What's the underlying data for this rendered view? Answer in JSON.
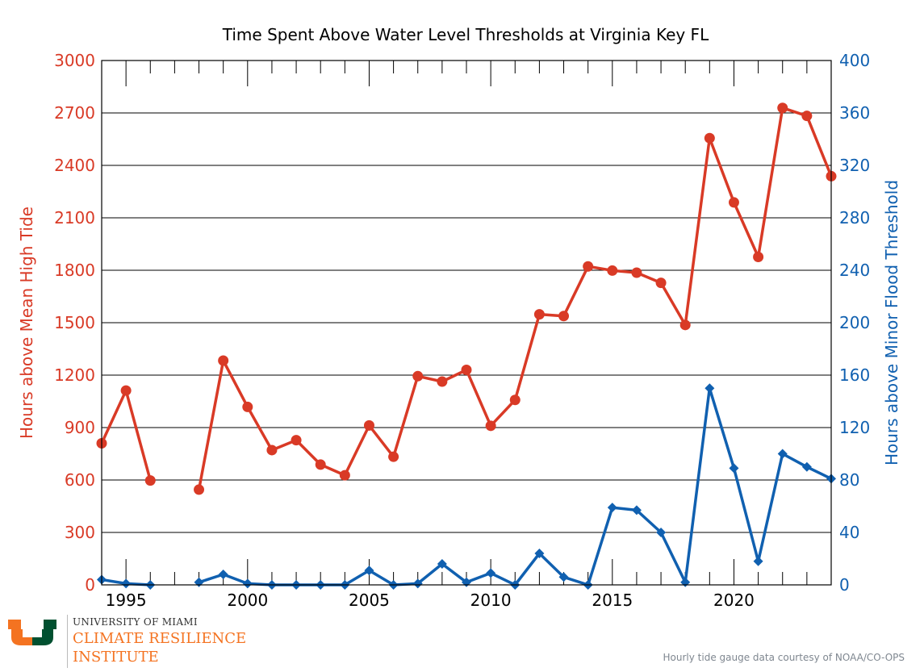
{
  "credit": "Hourly tide gauge data courtesy of NOAA/CO-OPS",
  "logo": {
    "university": "UNIVERSITY OF MIAMI",
    "line1": "CLIMATE RESILIENCE",
    "line2": "INSTITUTE",
    "colors": {
      "orange": "#f47321",
      "green": "#005030"
    }
  },
  "chart_data": {
    "type": "line",
    "title": "Time Spent Above Water Level Thresholds at Virginia Key FL",
    "xlabel": "",
    "ylabel": "Hours above Mean High Tide",
    "y2label": "Hours above Minor Flood Threshold",
    "xlim": [
      1994,
      2024
    ],
    "ylim": [
      0,
      3000
    ],
    "y2lim": [
      0,
      400
    ],
    "xticks": [
      1995,
      2000,
      2005,
      2010,
      2015,
      2020
    ],
    "yticks": [
      0,
      300,
      600,
      900,
      1200,
      1500,
      1800,
      2100,
      2400,
      2700,
      3000
    ],
    "y2ticks": [
      0,
      40,
      80,
      120,
      160,
      200,
      240,
      280,
      320,
      360,
      400
    ],
    "grid": "horizontal",
    "series": [
      {
        "name": "",
        "axis": "left",
        "color": "#d93a26",
        "marker": "circle",
        "points": [
          [
            1994,
            810
          ],
          [
            1995,
            1112
          ],
          [
            1996,
            597
          ],
          [
            1998,
            545
          ],
          [
            1999,
            1283
          ],
          [
            2000,
            1018
          ],
          [
            2001,
            771
          ],
          [
            2002,
            828
          ],
          [
            2003,
            688
          ],
          [
            2004,
            627
          ],
          [
            2005,
            912
          ],
          [
            2006,
            733
          ],
          [
            2007,
            1194
          ],
          [
            2008,
            1163
          ],
          [
            2009,
            1230
          ],
          [
            2010,
            910
          ],
          [
            2011,
            1058
          ],
          [
            2012,
            1548
          ],
          [
            2013,
            1538
          ],
          [
            2014,
            1822
          ],
          [
            2015,
            1798
          ],
          [
            2016,
            1786
          ],
          [
            2017,
            1728
          ],
          [
            2018,
            1487
          ],
          [
            2019,
            2556
          ],
          [
            2020,
            2188
          ],
          [
            2021,
            1876
          ],
          [
            2022,
            2729
          ],
          [
            2023,
            2683
          ],
          [
            2024,
            2338
          ]
        ],
        "gaps_after": [
          1996
        ]
      },
      {
        "name": "",
        "axis": "right",
        "color": "#1060b0",
        "marker": "diamond",
        "points": [
          [
            1994,
            4
          ],
          [
            1995,
            1
          ],
          [
            1996,
            0
          ],
          [
            1998,
            2
          ],
          [
            1999,
            8
          ],
          [
            2000,
            1
          ],
          [
            2001,
            0
          ],
          [
            2002,
            0
          ],
          [
            2003,
            0
          ],
          [
            2004,
            0
          ],
          [
            2005,
            11
          ],
          [
            2006,
            0
          ],
          [
            2007,
            1
          ],
          [
            2008,
            16
          ],
          [
            2009,
            2
          ],
          [
            2010,
            9
          ],
          [
            2011,
            0
          ],
          [
            2012,
            24
          ],
          [
            2013,
            6
          ],
          [
            2014,
            0
          ],
          [
            2015,
            59
          ],
          [
            2016,
            57
          ],
          [
            2017,
            40
          ],
          [
            2018,
            2
          ],
          [
            2019,
            150
          ],
          [
            2020,
            89
          ],
          [
            2021,
            18
          ],
          [
            2022,
            100
          ],
          [
            2023,
            90
          ],
          [
            2024,
            81
          ]
        ],
        "gaps_after": [
          1996
        ]
      }
    ]
  }
}
